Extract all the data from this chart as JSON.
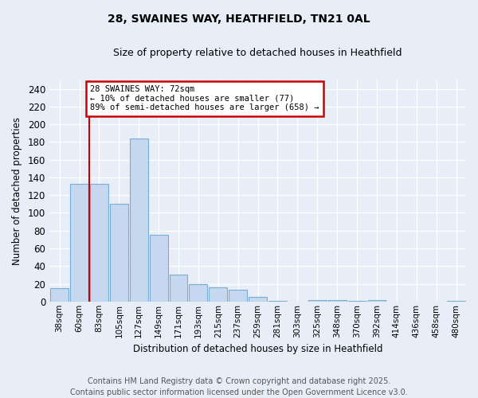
{
  "title": "28, SWAINES WAY, HEATHFIELD, TN21 0AL",
  "subtitle": "Size of property relative to detached houses in Heathfield",
  "xlabel": "Distribution of detached houses by size in Heathfield",
  "ylabel": "Number of detached properties",
  "categories": [
    "38sqm",
    "60sqm",
    "83sqm",
    "105sqm",
    "127sqm",
    "149sqm",
    "171sqm",
    "193sqm",
    "215sqm",
    "237sqm",
    "259sqm",
    "281sqm",
    "303sqm",
    "325sqm",
    "348sqm",
    "370sqm",
    "392sqm",
    "414sqm",
    "436sqm",
    "458sqm",
    "480sqm"
  ],
  "values": [
    15,
    133,
    133,
    110,
    184,
    75,
    30,
    20,
    16,
    13,
    5,
    1,
    0,
    2,
    2,
    1,
    2,
    0,
    0,
    0,
    1
  ],
  "bar_color": "#c5d8ef",
  "bar_edge_color": "#7aadd4",
  "vline_x": 1.5,
  "vline_color": "#cc0000",
  "ylim": [
    0,
    250
  ],
  "yticks": [
    0,
    20,
    40,
    60,
    80,
    100,
    120,
    140,
    160,
    180,
    200,
    220,
    240
  ],
  "annotation_text": "28 SWAINES WAY: 72sqm\n← 10% of detached houses are smaller (77)\n89% of semi-detached houses are larger (658) →",
  "annotation_box_color": "#ffffff",
  "annotation_box_edgecolor": "#cc0000",
  "footer_line1": "Contains HM Land Registry data © Crown copyright and database right 2025.",
  "footer_line2": "Contains public sector information licensed under the Open Government Licence v3.0.",
  "background_color": "#e8eef7",
  "plot_bg_color": "#e8eef7",
  "grid_color": "#ffffff",
  "title_fontsize": 10,
  "subtitle_fontsize": 9,
  "footer_fontsize": 7.0
}
